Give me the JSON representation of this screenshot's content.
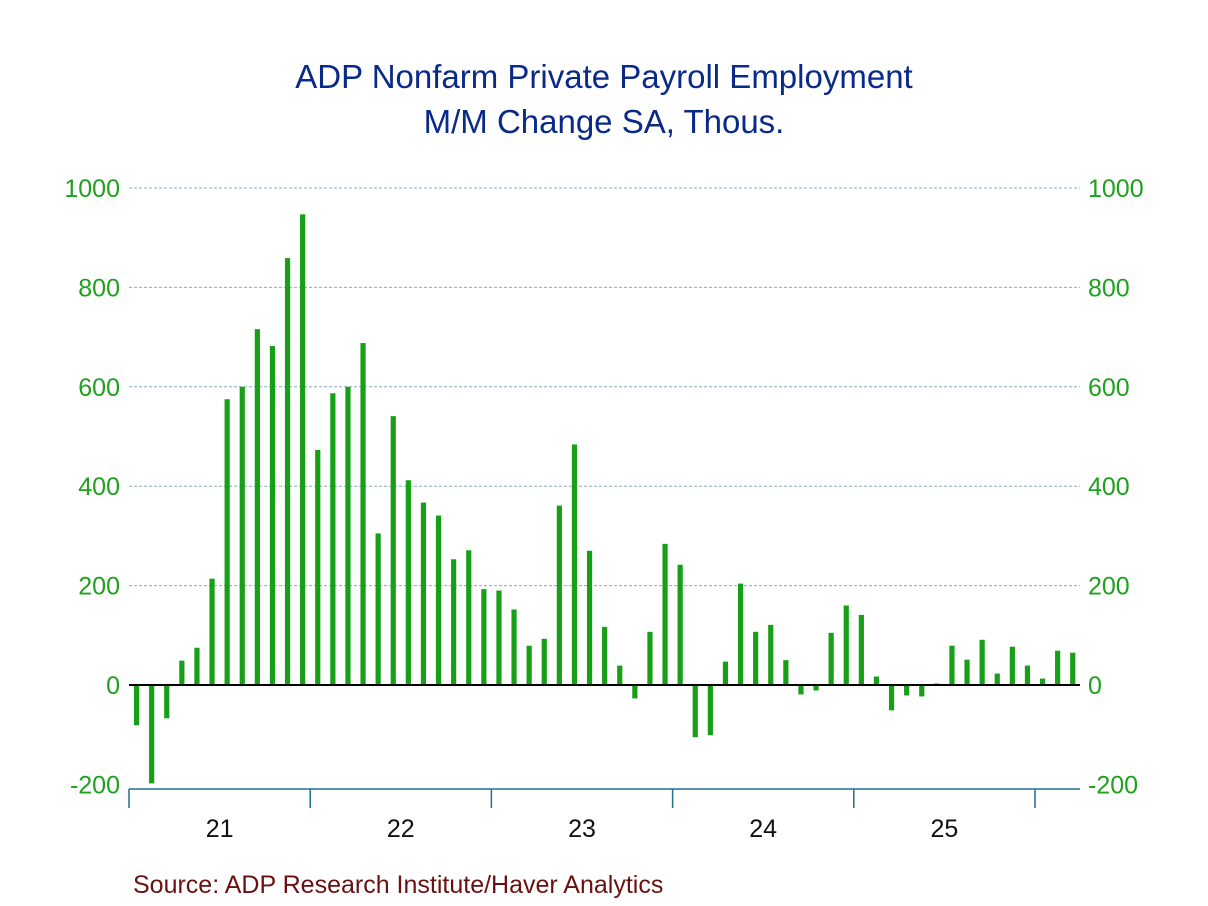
{
  "chart_data": {
    "type": "bar",
    "title": "ADP Nonfarm Private Payroll Employment",
    "subtitle": "M/M Change    SA, Thous.",
    "source": "Source:  ADP Research Institute/Haver Analytics",
    "xlabel": "",
    "ylabel": "",
    "ylim": [
      -200,
      1000
    ],
    "yticks": [
      -200,
      0,
      200,
      400,
      600,
      800,
      1000
    ],
    "ytick_labels": [
      "-200",
      "0",
      "200",
      "400",
      "600",
      "800",
      "1000"
    ],
    "xtick_labels": [
      "21",
      "22",
      "23",
      "24",
      "25"
    ],
    "grid": true,
    "frequency": "monthly",
    "start": "2021-01",
    "end": "2026-03",
    "colors": {
      "bar": "#17a017",
      "title": "#0a2a8a",
      "ticks": "#1fa01f",
      "source": "#6b1010",
      "grid": "#7fb0c8",
      "axis": "#1f6f8f"
    },
    "values": [
      -81,
      -198,
      -67,
      49,
      75,
      214,
      575,
      600,
      716,
      682,
      859,
      947,
      473,
      587,
      600,
      688,
      305,
      541,
      412,
      367,
      341,
      253,
      271,
      193,
      190,
      152,
      79,
      93,
      361,
      484,
      270,
      117,
      39,
      -27,
      107,
      284,
      242,
      -105,
      -101,
      47,
      204,
      107,
      121,
      50,
      -19,
      -11,
      105,
      160,
      141,
      17,
      -51,
      -21,
      -23,
      3,
      79,
      51,
      91,
      23,
      77,
      39,
      13,
      69,
      65
    ]
  }
}
